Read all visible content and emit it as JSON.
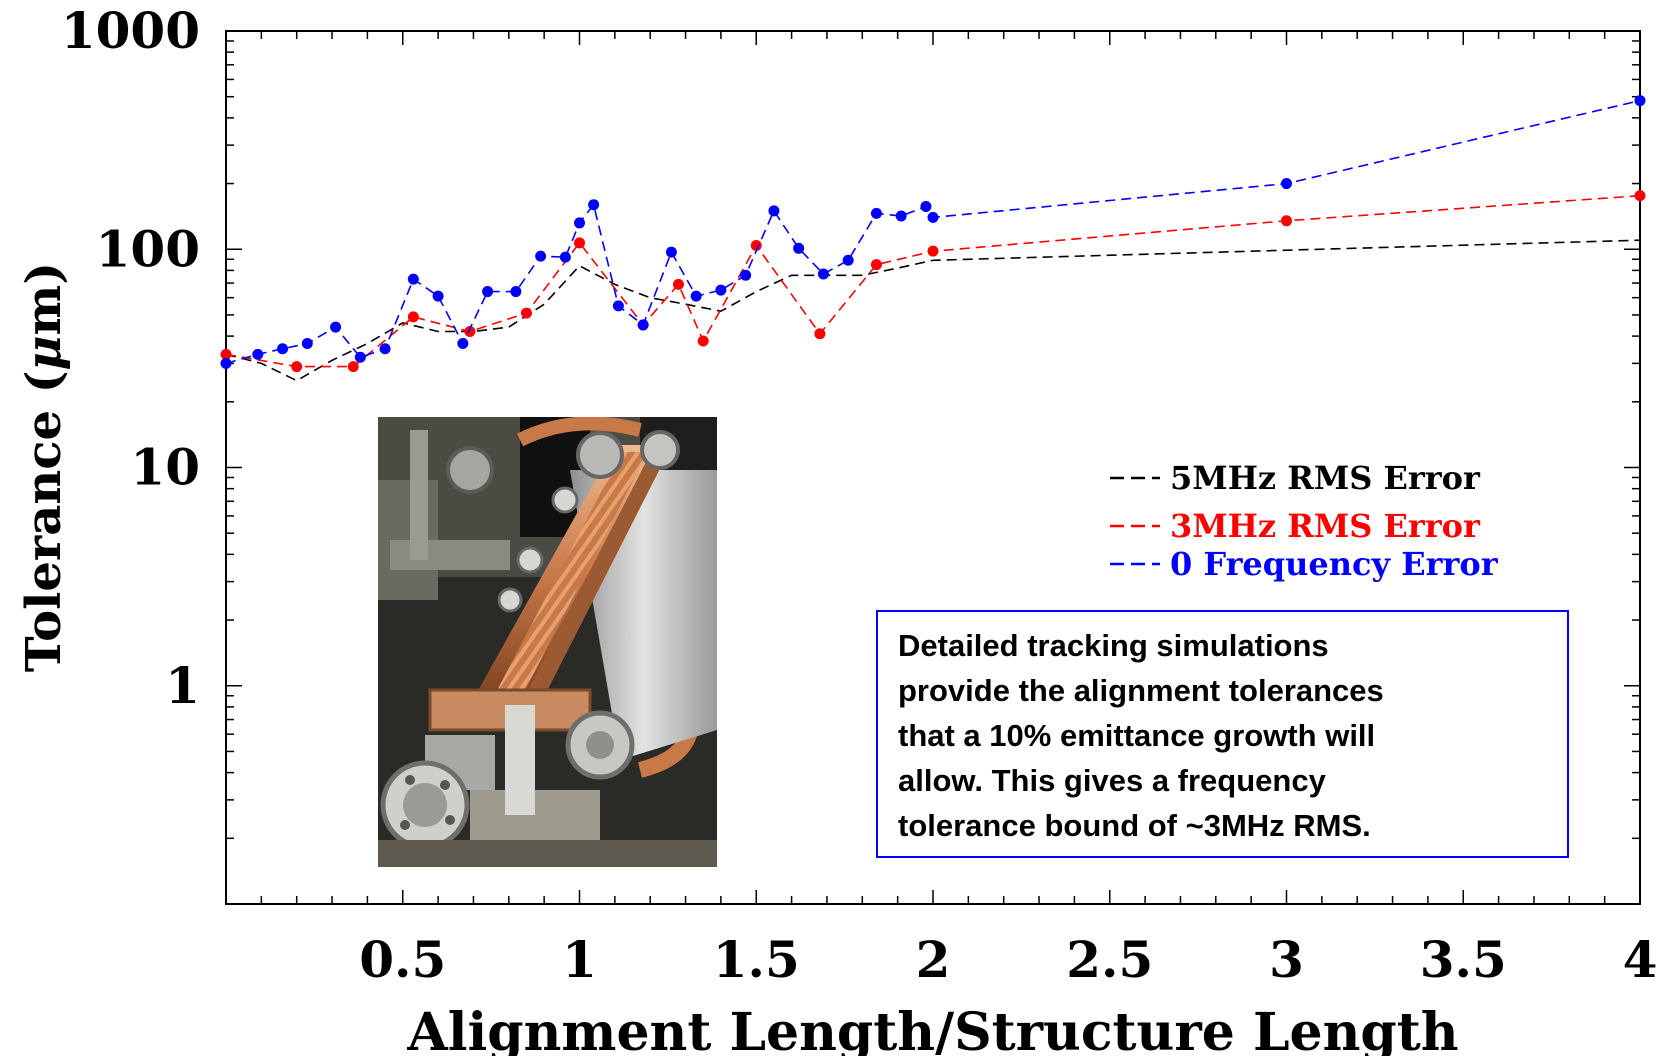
{
  "chart_data": {
    "type": "line",
    "title": "",
    "xlabel": "Alignment Length/Structure Length",
    "ylabel_prefix": "Tolerance (",
    "ylabel_mu": "μ",
    "ylabel_suffix": "m)",
    "y_scale": "log",
    "xlim": [
      0,
      4
    ],
    "ylim": [
      0.1,
      1000
    ],
    "x_tick_labels": [
      "0.5",
      "1",
      "1.5",
      "2",
      "2.5",
      "3",
      "3.5",
      "4"
    ],
    "x_tick_values": [
      0.5,
      1,
      1.5,
      2,
      2.5,
      3,
      3.5,
      4
    ],
    "y_tick_labels": [
      "1",
      "10",
      "100",
      "1000"
    ],
    "y_tick_values": [
      1,
      10,
      100,
      1000
    ],
    "grid": false,
    "legend_position": "right-middle",
    "series": [
      {
        "name": "5MHz RMS Error",
        "color": "#000000",
        "markers": false,
        "x": [
          0.0,
          0.1,
          0.2,
          0.3,
          0.4,
          0.5,
          0.6,
          0.7,
          0.8,
          0.9,
          1.0,
          1.1,
          1.2,
          1.3,
          1.4,
          1.5,
          1.6,
          1.7,
          1.8,
          1.9,
          2.0,
          3.0,
          4.0
        ],
        "y": [
          33,
          30,
          25,
          31,
          37,
          46,
          42,
          42,
          44,
          56,
          84,
          69,
          60,
          56,
          52,
          64,
          76,
          76,
          76,
          82,
          89,
          99,
          110
        ]
      },
      {
        "name": "3MHz RMS Error",
        "color": "#ff0000",
        "markers": true,
        "x": [
          0.0,
          0.2,
          0.36,
          0.53,
          0.69,
          0.85,
          1.0,
          1.18,
          1.28,
          1.35,
          1.5,
          1.68,
          1.84,
          2.0,
          3.0,
          4.0
        ],
        "y": [
          33,
          29,
          29,
          49,
          42,
          51,
          107,
          45,
          69,
          38,
          104,
          41,
          85,
          98,
          135,
          176
        ]
      },
      {
        "name": "0 Frequency Error",
        "color": "#0000ff",
        "markers": true,
        "x": [
          0.0,
          0.09,
          0.16,
          0.23,
          0.31,
          0.38,
          0.45,
          0.53,
          0.6,
          0.67,
          0.74,
          0.82,
          0.89,
          0.96,
          1.0,
          1.04,
          1.11,
          1.18,
          1.26,
          1.33,
          1.4,
          1.47,
          1.55,
          1.62,
          1.69,
          1.76,
          1.84,
          1.91,
          1.98,
          2.0,
          3.0,
          4.0
        ],
        "y": [
          30,
          33,
          35,
          37,
          44,
          32,
          35,
          73,
          61,
          37,
          64,
          64,
          93,
          92,
          132,
          160,
          55,
          45,
          97,
          61,
          65,
          76,
          150,
          101,
          77,
          89,
          146,
          142,
          157,
          140,
          200,
          480
        ]
      }
    ],
    "annotation_lines": [
      "Detailed tracking simulations",
      "provide the alignment tolerances",
      "that a 10% emittance growth will",
      "allow.  This gives a frequency",
      "tolerance bound of ~3MHz RMS."
    ],
    "inset_photo": "accelerator-structure-photo",
    "colors": {
      "axis": "#000000",
      "annotation_border": "#0000ff",
      "copper": "#c8794a",
      "steel": "#b9b9b9"
    }
  }
}
